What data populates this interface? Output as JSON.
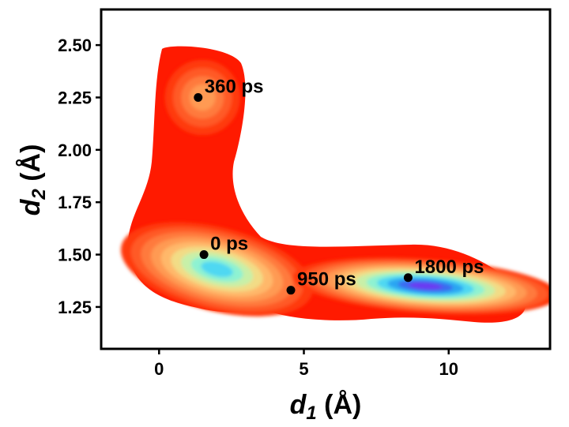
{
  "chart_data": {
    "type": "contour",
    "title": "",
    "xlabel": {
      "symbol": "d",
      "subscript": "1",
      "unit": " (Å)"
    },
    "ylabel": {
      "symbol": "d",
      "subscript": "2",
      "unit": " (Å)"
    },
    "xlim": [
      -2.0,
      13.5
    ],
    "ylim": [
      1.05,
      2.67
    ],
    "xticks": [
      0,
      5,
      10
    ],
    "xtick_labels": [
      "0",
      "5",
      "10"
    ],
    "yticks": [
      1.25,
      1.5,
      1.75,
      2.0,
      2.25,
      2.5
    ],
    "ytick_labels": [
      "1.25",
      "1.50",
      "1.75",
      "2.00",
      "2.25",
      "2.50"
    ],
    "colormap": "rainbow (red = low density, violet = high density)",
    "colors": {
      "levels": [
        "#ff1a00",
        "#ff3a10",
        "#ff5a25",
        "#ff7a3c",
        "#ff9a52",
        "#ffb86a",
        "#f2dc86",
        "#c8f0a8",
        "#8ef2d2",
        "#4fd8f2",
        "#2aa6f2",
        "#3a6af0",
        "#6a3af2"
      ]
    },
    "density_peaks": [
      {
        "name": "basin-near-0ps",
        "x": 2.0,
        "y": 1.43,
        "relative_density": 0.78
      },
      {
        "name": "basin-near-1800ps",
        "x": 9.2,
        "y": 1.35,
        "relative_density": 1.0
      },
      {
        "name": "basin-near-360ps",
        "x": 1.5,
        "y": 2.25,
        "relative_density": 0.3
      }
    ],
    "points": [
      {
        "label": "0 ps",
        "x": 1.55,
        "y": 1.5
      },
      {
        "label": "360 ps",
        "x": 1.35,
        "y": 2.25
      },
      {
        "label": "950 ps",
        "x": 4.55,
        "y": 1.33
      },
      {
        "label": "1800 ps",
        "x": 8.6,
        "y": 1.39
      }
    ]
  }
}
